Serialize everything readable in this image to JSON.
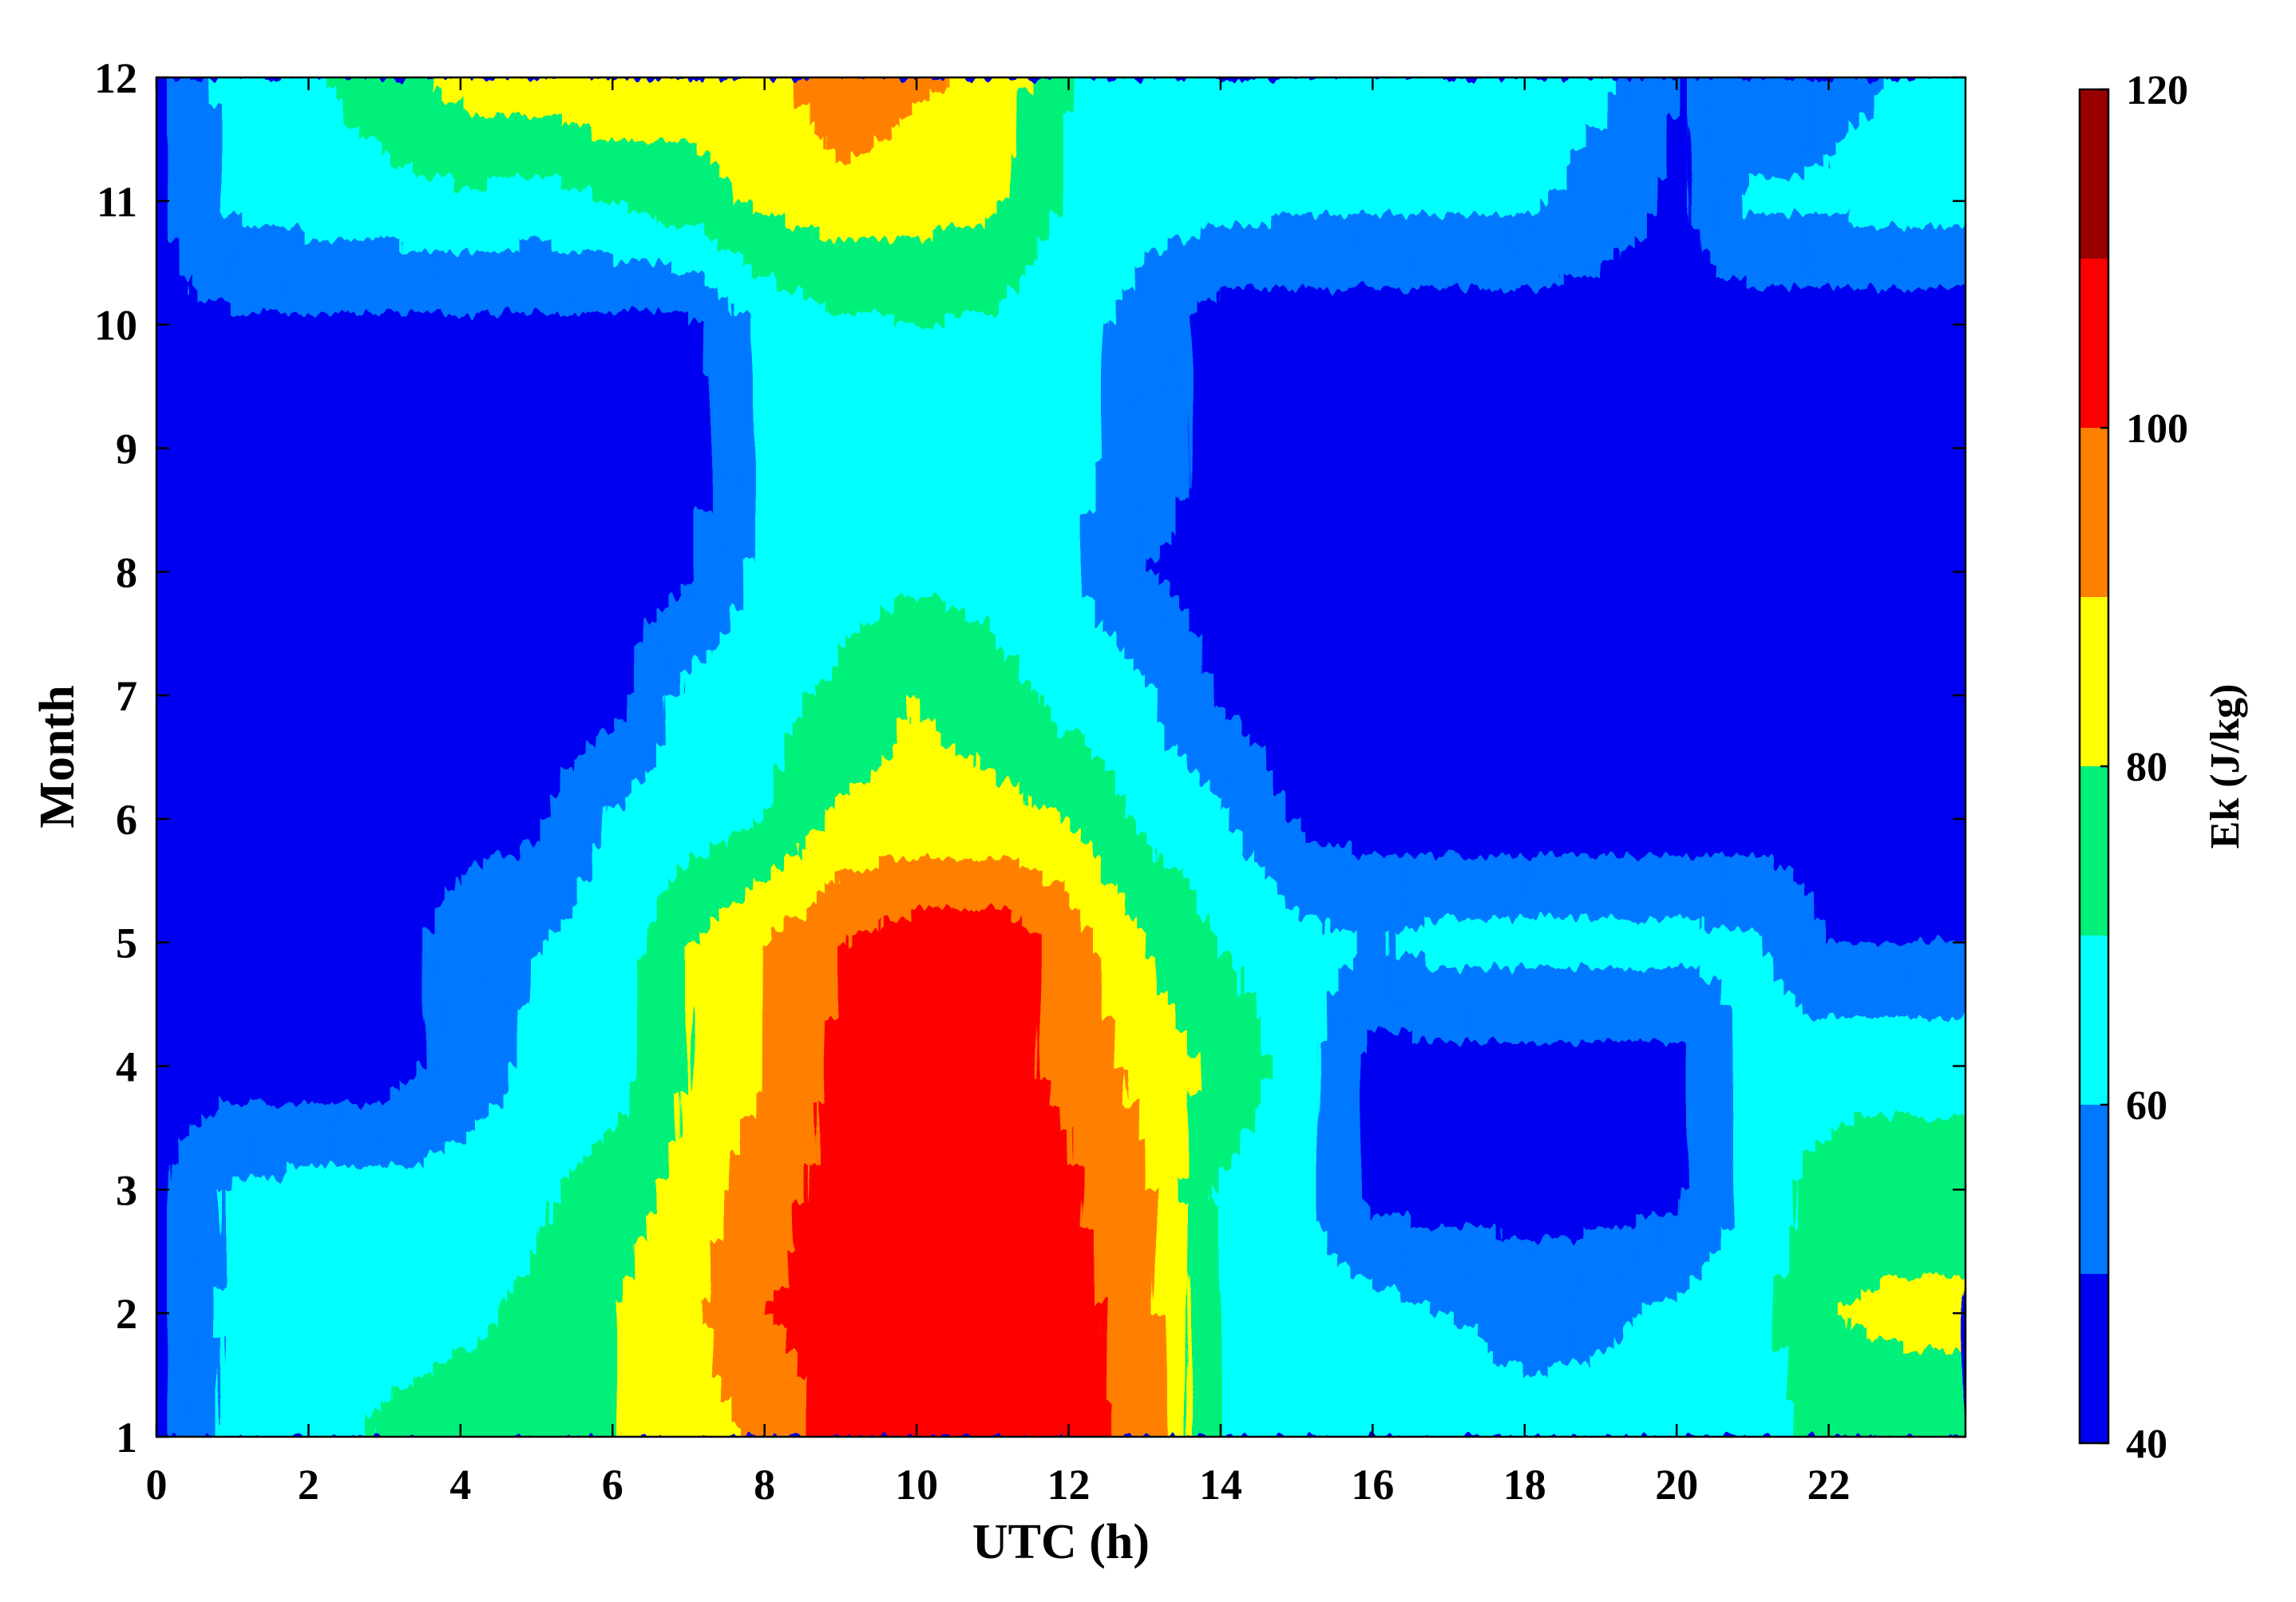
{
  "chart_data": {
    "type": "heatmap",
    "title": "",
    "xlabel": "UTC (h)",
    "ylabel": "Month",
    "xlim": [
      0,
      23.8
    ],
    "ylim": [
      1,
      12
    ],
    "x_ticks": [
      "0",
      "2",
      "4",
      "6",
      "8",
      "10",
      "12",
      "14",
      "16",
      "18",
      "20",
      "22"
    ],
    "x_tick_values": [
      0,
      2,
      4,
      6,
      8,
      10,
      12,
      14,
      16,
      18,
      20,
      22
    ],
    "y_ticks": [
      "1",
      "2",
      "3",
      "4",
      "5",
      "6",
      "7",
      "8",
      "9",
      "10",
      "11",
      "12"
    ],
    "y_tick_values": [
      1,
      2,
      3,
      4,
      5,
      6,
      7,
      8,
      9,
      10,
      11,
      12
    ],
    "colorbar": {
      "label": "Ek (J/kg)",
      "range": [
        40,
        120
      ],
      "tick_labels": [
        "40",
        "60",
        "80",
        "100",
        "120"
      ],
      "tick_values": [
        40,
        60,
        80,
        100,
        120
      ],
      "levels": [
        40,
        50,
        60,
        70,
        80,
        90,
        100,
        110,
        120
      ],
      "colors": [
        "#0000f0",
        "#0078ff",
        "#00ffff",
        "#00f07a",
        "#ffff00",
        "#ff8000",
        "#ff0000",
        "#990000"
      ]
    },
    "x": [
      0,
      1,
      2,
      3,
      4,
      5,
      6,
      7,
      8,
      9,
      10,
      11,
      12,
      13,
      14,
      15,
      16,
      17,
      18,
      19,
      20,
      21,
      22,
      23,
      23.8
    ],
    "y": [
      1,
      2,
      3,
      4,
      5,
      6,
      7,
      8,
      9,
      10,
      11,
      12
    ],
    "z": [
      [
        48,
        62,
        65,
        72,
        74,
        70,
        80,
        85,
        92,
        105,
        104,
        106,
        103,
        98,
        70,
        66,
        66,
        68,
        64,
        64,
        65,
        66,
        72,
        74,
        74
      ],
      [
        48,
        64,
        65,
        66,
        68,
        72,
        80,
        88,
        100,
        104,
        105,
        106,
        103,
        96,
        70,
        66,
        64,
        60,
        56,
        58,
        62,
        66,
        80,
        82,
        82
      ],
      [
        48,
        62,
        63,
        63,
        64,
        68,
        74,
        84,
        96,
        104,
        106,
        104,
        102,
        92,
        68,
        64,
        46,
        46,
        46,
        46,
        48,
        64,
        74,
        76,
        76
      ],
      [
        45,
        45,
        45,
        45,
        55,
        62,
        66,
        80,
        90,
        102,
        104,
        104,
        98,
        86,
        78,
        66,
        46,
        46,
        46,
        46,
        46,
        64,
        66,
        66,
        66
      ],
      [
        45,
        45,
        45,
        45,
        55,
        60,
        64,
        80,
        90,
        100,
        106,
        108,
        96,
        80,
        70,
        64,
        60,
        64,
        64,
        64,
        63,
        62,
        50,
        50,
        50
      ],
      [
        45,
        45,
        45,
        45,
        45,
        48,
        62,
        64,
        70,
        82,
        84,
        84,
        80,
        68,
        62,
        48,
        45,
        45,
        45,
        45,
        45,
        45,
        45,
        45,
        45
      ],
      [
        45,
        45,
        45,
        45,
        45,
        45,
        46,
        64,
        66,
        72,
        80,
        74,
        66,
        62,
        48,
        45,
        45,
        45,
        45,
        45,
        45,
        45,
        45,
        45,
        45
      ],
      [
        45,
        45,
        45,
        45,
        45,
        45,
        45,
        48,
        64,
        66,
        68,
        66,
        62,
        50,
        46,
        45,
        45,
        45,
        45,
        45,
        45,
        45,
        45,
        45,
        45
      ],
      [
        45,
        45,
        45,
        45,
        45,
        45,
        45,
        45,
        62,
        64,
        66,
        66,
        62,
        58,
        45,
        45,
        45,
        45,
        45,
        45,
        45,
        45,
        45,
        45,
        45
      ],
      [
        48,
        48,
        48,
        48,
        48,
        48,
        48,
        48,
        62,
        68,
        70,
        68,
        64,
        56,
        45,
        45,
        45,
        45,
        45,
        45,
        45,
        45,
        45,
        45,
        45
      ],
      [
        48,
        62,
        64,
        66,
        68,
        66,
        70,
        76,
        82,
        86,
        84,
        82,
        68,
        64,
        64,
        62,
        62,
        62,
        62,
        56,
        48,
        62,
        62,
        64,
        64
      ],
      [
        48,
        64,
        68,
        76,
        84,
        86,
        90,
        84,
        86,
        98,
        92,
        88,
        70,
        64,
        64,
        64,
        66,
        70,
        64,
        62,
        50,
        50,
        56,
        62,
        62
      ]
    ]
  }
}
